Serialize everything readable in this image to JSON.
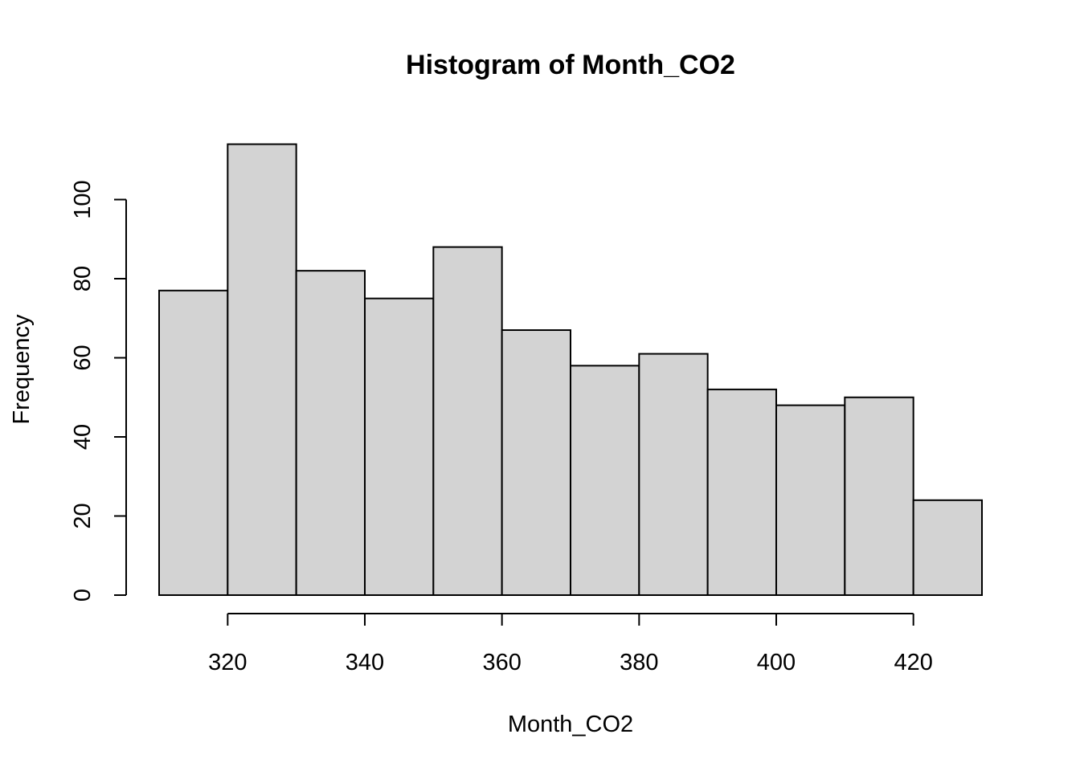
{
  "chart_data": {
    "type": "bar",
    "title": "Histogram of Month_CO2",
    "xlabel": "Month_CO2",
    "ylabel": "Frequency",
    "bins": [
      {
        "start": 310,
        "end": 320,
        "count": 77
      },
      {
        "start": 320,
        "end": 330,
        "count": 114
      },
      {
        "start": 330,
        "end": 340,
        "count": 82
      },
      {
        "start": 340,
        "end": 350,
        "count": 75
      },
      {
        "start": 350,
        "end": 360,
        "count": 88
      },
      {
        "start": 360,
        "end": 370,
        "count": 67
      },
      {
        "start": 370,
        "end": 380,
        "count": 58
      },
      {
        "start": 380,
        "end": 390,
        "count": 61
      },
      {
        "start": 390,
        "end": 400,
        "count": 52
      },
      {
        "start": 400,
        "end": 410,
        "count": 48
      },
      {
        "start": 410,
        "end": 420,
        "count": 50
      },
      {
        "start": 420,
        "end": 430,
        "count": 24
      }
    ],
    "xlim": [
      310,
      430
    ],
    "ylim": [
      0,
      114
    ],
    "x_ticks": [
      320,
      340,
      360,
      380,
      400,
      420
    ],
    "y_ticks": [
      0,
      20,
      40,
      60,
      80,
      100
    ],
    "bar_fill": "#d3d3d3",
    "bar_stroke": "#000000",
    "grid": false,
    "legend": "none"
  }
}
